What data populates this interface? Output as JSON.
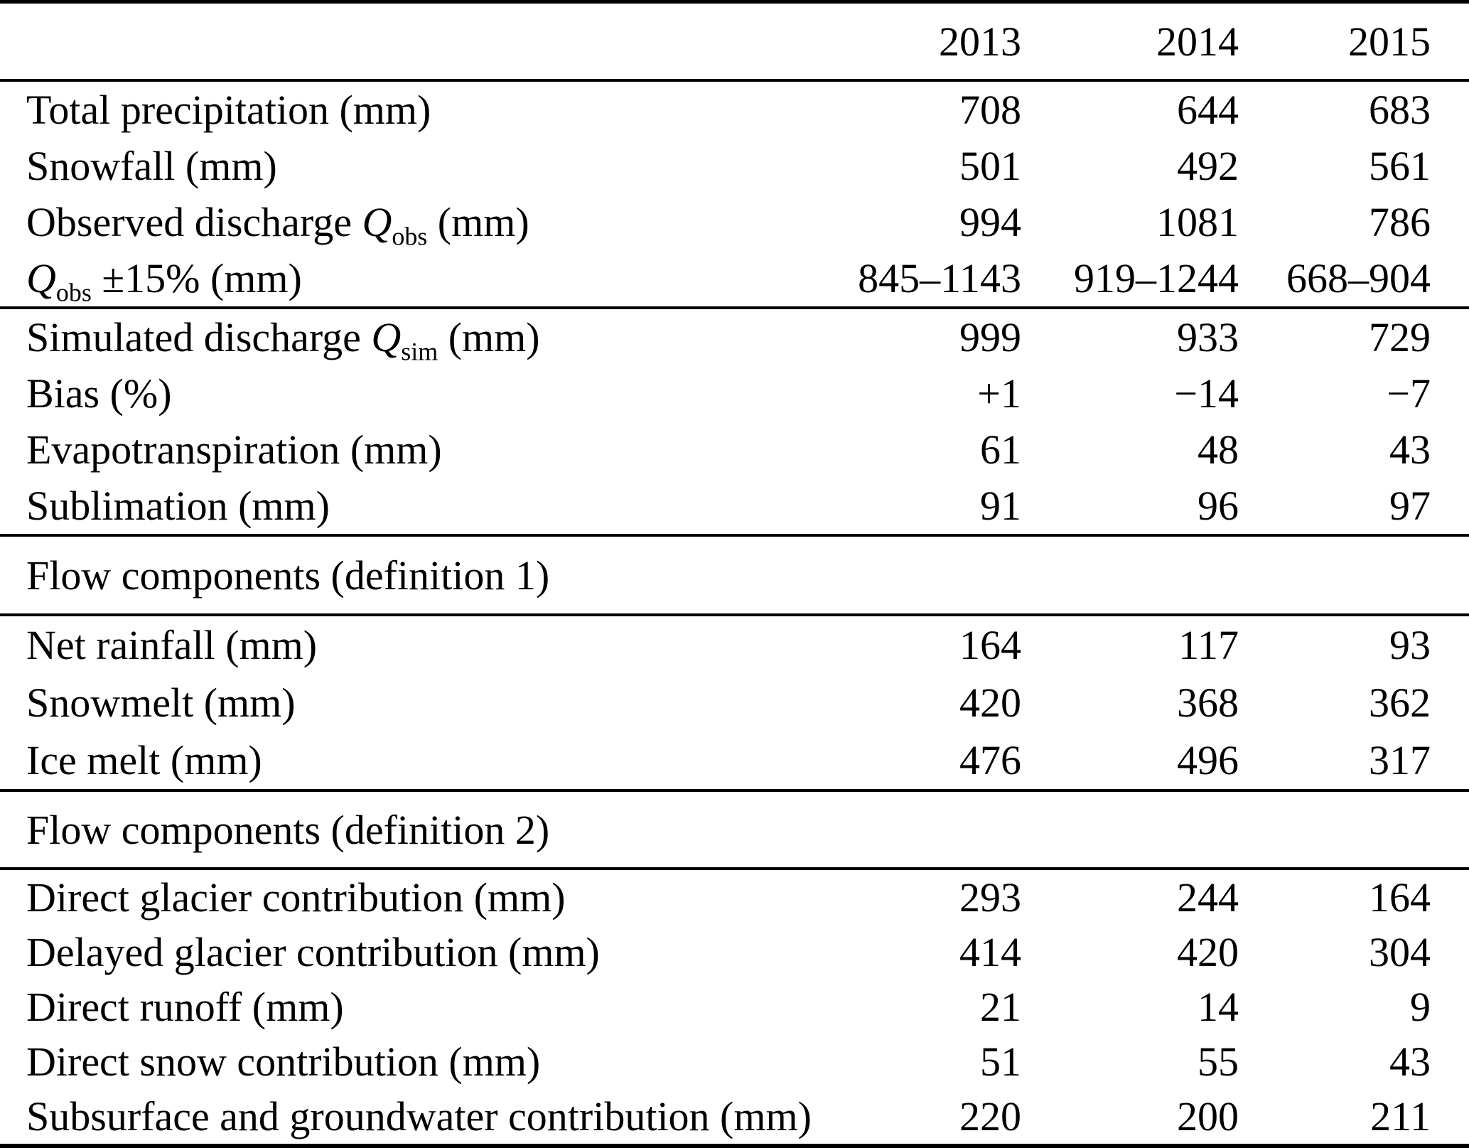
{
  "table": {
    "years": [
      "2013",
      "2014",
      "2015"
    ],
    "sections": [
      {
        "rows": [
          {
            "label": {
              "pre": "Total precipitation (mm)",
              "q": "",
              "sub": "",
              "post": ""
            },
            "values": [
              "708",
              "644",
              "683"
            ]
          },
          {
            "label": {
              "pre": "Snowfall (mm)",
              "q": "",
              "sub": "",
              "post": ""
            },
            "values": [
              "501",
              "492",
              "561"
            ]
          },
          {
            "label": {
              "pre": "Observed discharge ",
              "q": "Q",
              "sub": "obs",
              "post": " (mm)"
            },
            "values": [
              "994",
              "1081",
              "786"
            ]
          },
          {
            "label": {
              "pre": "",
              "q": "Q",
              "sub": "obs",
              "post": " ±15% (mm)"
            },
            "values": [
              "845–1143",
              "919–1244",
              "668–904"
            ]
          }
        ]
      },
      {
        "rows": [
          {
            "label": {
              "pre": "Simulated discharge ",
              "q": "Q",
              "sub": "sim",
              "post": " (mm)"
            },
            "values": [
              "999",
              "933",
              "729"
            ]
          },
          {
            "label": {
              "pre": "Bias (%)",
              "q": "",
              "sub": "",
              "post": ""
            },
            "values": [
              "+1",
              "−14",
              "−7"
            ]
          },
          {
            "label": {
              "pre": "Evapotranspiration (mm)",
              "q": "",
              "sub": "",
              "post": ""
            },
            "values": [
              "61",
              "48",
              "43"
            ]
          },
          {
            "label": {
              "pre": "Sublimation (mm)",
              "q": "",
              "sub": "",
              "post": ""
            },
            "values": [
              "91",
              "96",
              "97"
            ]
          }
        ]
      },
      {
        "title": "Flow components (definition 1)",
        "rows": [
          {
            "label": {
              "pre": "Net rainfall (mm)",
              "q": "",
              "sub": "",
              "post": ""
            },
            "values": [
              "164",
              "117",
              "93"
            ]
          },
          {
            "label": {
              "pre": "Snowmelt (mm)",
              "q": "",
              "sub": "",
              "post": ""
            },
            "values": [
              "420",
              "368",
              "362"
            ]
          },
          {
            "label": {
              "pre": "Ice melt (mm)",
              "q": "",
              "sub": "",
              "post": ""
            },
            "values": [
              "476",
              "496",
              "317"
            ]
          }
        ]
      },
      {
        "title": "Flow components (definition 2)",
        "rows": [
          {
            "label": {
              "pre": "Direct glacier contribution (mm)",
              "q": "",
              "sub": "",
              "post": ""
            },
            "values": [
              "293",
              "244",
              "164"
            ]
          },
          {
            "label": {
              "pre": "Delayed glacier contribution (mm)",
              "q": "",
              "sub": "",
              "post": ""
            },
            "values": [
              "414",
              "420",
              "304"
            ]
          },
          {
            "label": {
              "pre": "Direct runoff (mm)",
              "q": "",
              "sub": "",
              "post": ""
            },
            "values": [
              "21",
              "14",
              "9"
            ]
          },
          {
            "label": {
              "pre": "Direct snow contribution (mm)",
              "q": "",
              "sub": "",
              "post": ""
            },
            "values": [
              "51",
              "55",
              "43"
            ]
          },
          {
            "label": {
              "pre": "Subsurface and groundwater contribution (mm)",
              "q": "",
              "sub": "",
              "post": ""
            },
            "values": [
              "220",
              "200",
              "211"
            ]
          }
        ]
      }
    ]
  }
}
